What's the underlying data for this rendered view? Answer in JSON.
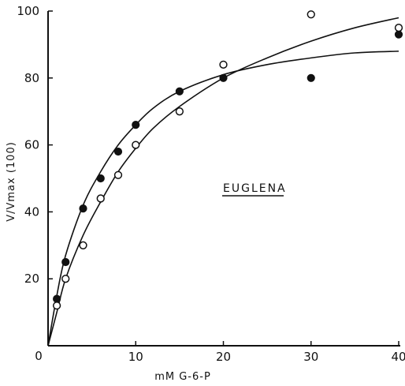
{
  "chart_data": {
    "type": "scatter",
    "title": "",
    "xlabel": "mM G-6-P",
    "ylabel": "V/Vmax (100)",
    "xlim": [
      0,
      40
    ],
    "ylim": [
      0,
      100
    ],
    "x_ticks": [
      "0",
      "10",
      "20",
      "30",
      "40"
    ],
    "y_ticks": [
      "20",
      "40",
      "60",
      "80",
      "100"
    ],
    "grid": false,
    "legend": "none",
    "annotation": "EUGLENA",
    "series": [
      {
        "marker": "filled-circle",
        "x": [
          1,
          2,
          4,
          6,
          8,
          10,
          15,
          20,
          30,
          40
        ],
        "y": [
          14,
          25,
          41,
          50,
          58,
          66,
          76,
          80,
          80,
          93
        ],
        "fit": [
          [
            0,
            0
          ],
          [
            1,
            15
          ],
          [
            2,
            27
          ],
          [
            4,
            42
          ],
          [
            6,
            52
          ],
          [
            8,
            60
          ],
          [
            10,
            66
          ],
          [
            12,
            71
          ],
          [
            15,
            76
          ],
          [
            20,
            81
          ],
          [
            25,
            84
          ],
          [
            30,
            86
          ],
          [
            35,
            87.5
          ],
          [
            40,
            88
          ]
        ]
      },
      {
        "marker": "open-circle",
        "x": [
          1,
          2,
          4,
          6,
          8,
          10,
          15,
          20,
          30,
          40
        ],
        "y": [
          12,
          20,
          30,
          44,
          51,
          60,
          70,
          84,
          99,
          95
        ],
        "fit": [
          [
            0,
            0
          ],
          [
            1,
            10
          ],
          [
            2,
            20
          ],
          [
            4,
            33
          ],
          [
            6,
            43
          ],
          [
            8,
            52
          ],
          [
            10,
            59
          ],
          [
            12,
            65
          ],
          [
            15,
            71.5
          ],
          [
            20,
            80
          ],
          [
            25,
            86
          ],
          [
            30,
            91
          ],
          [
            35,
            95
          ],
          [
            40,
            98
          ]
        ]
      }
    ]
  }
}
